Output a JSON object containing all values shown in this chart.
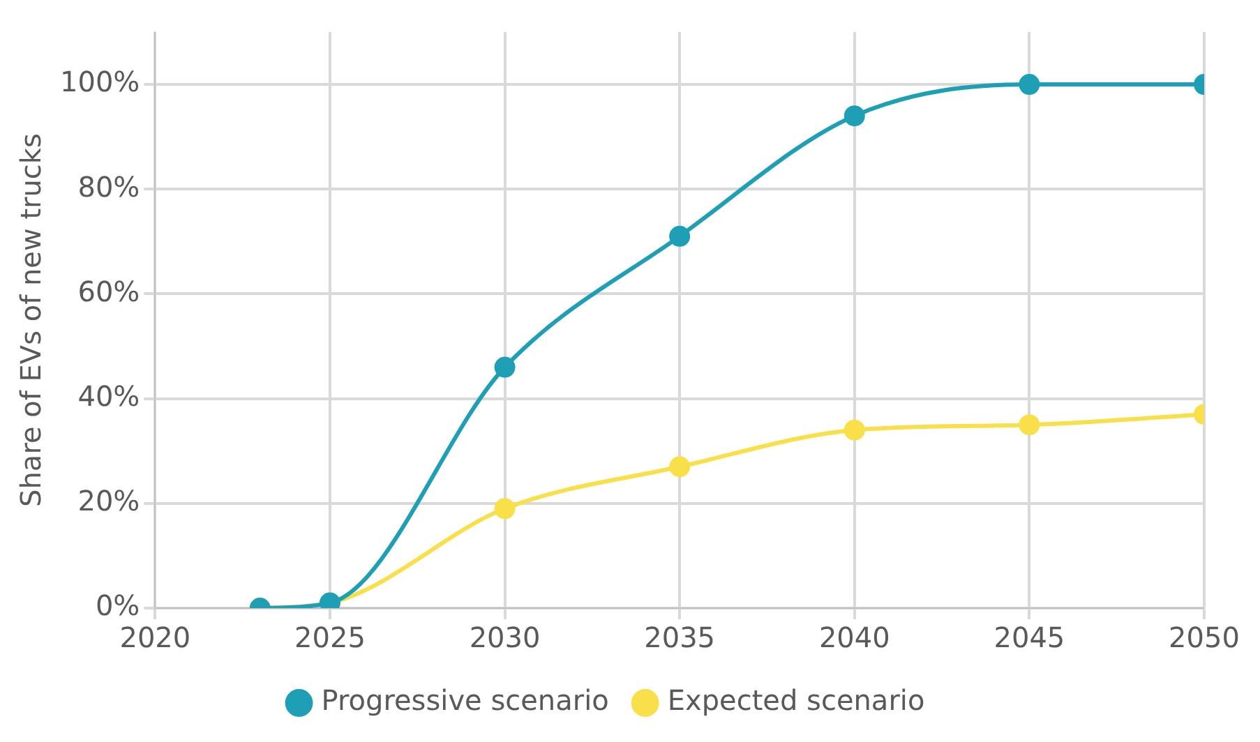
{
  "chart_data": {
    "type": "line",
    "ylabel": "Share of EVs of new trucks",
    "x": [
      2023,
      2025,
      2030,
      2035,
      2040,
      2045,
      2050
    ],
    "series": [
      {
        "name": "Expected scenario",
        "color": "#f9e04b",
        "values": [
          0,
          1,
          19,
          27,
          34,
          35,
          37
        ]
      },
      {
        "name": "Progressive scenario",
        "color": "#1f9fb5",
        "values": [
          0,
          1,
          46,
          71,
          94,
          100,
          100
        ]
      }
    ],
    "xlim": [
      2020,
      2050
    ],
    "xticks": [
      2020,
      2025,
      2030,
      2035,
      2040,
      2045,
      2050
    ],
    "ylim": [
      0,
      110
    ],
    "yticks": [
      {
        "value": 0,
        "label": "0%"
      },
      {
        "value": 20,
        "label": "20%"
      },
      {
        "value": 40,
        "label": "40%"
      },
      {
        "value": 60,
        "label": "60%"
      },
      {
        "value": 80,
        "label": "80%"
      },
      {
        "value": 100,
        "label": "100%"
      }
    ],
    "grid": true,
    "legend": "bottom",
    "marker": "circle",
    "line_style": "solid"
  }
}
